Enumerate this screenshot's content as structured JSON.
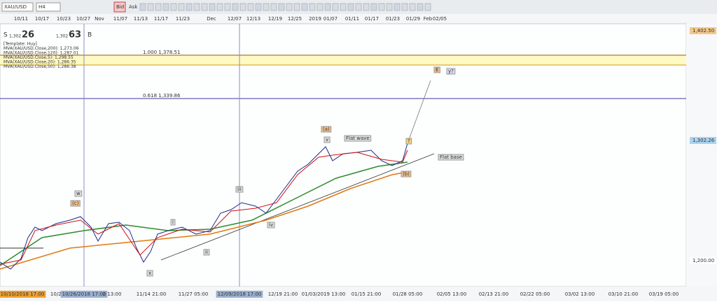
{
  "toolbar": {
    "symbol": "XAU/USD",
    "timeframe": "H4",
    "bid": "Bid",
    "ask": "Ask"
  },
  "top_dates": [
    "10/11",
    "10/17",
    "10/23",
    "10/27",
    "Nov",
    "11/07",
    "11/13",
    "11/17",
    "11/23",
    "Dec",
    "12/07",
    "12/13",
    "12/19",
    "12/25",
    "2019",
    "01/07",
    "01/11",
    "01/17",
    "01/23",
    "01/29",
    "Feb",
    "02/05"
  ],
  "quote": {
    "sell_label": "S",
    "sell_small": "1,302",
    "sell_big": "26",
    "buy_small": "1,302",
    "buy_big": "63",
    "buy_label": "B"
  },
  "legend": [
    "[Template: Huy]",
    "MVA(XAU/USD.Close,200): 1,273.06",
    "MVA(XAU/USD.Close,120): 1,287.01",
    "MVA(XAU/USD.Close,5): 1,298.55",
    "MVA(XAU/USD.Close,20): 1,286.35",
    "MVA(XAU/USD.Close,50): 1,286.38"
  ],
  "levels": [
    "1.000 1,378.51",
    "0.618 1,339.86"
  ],
  "price_axis": [
    "1,402.50",
    "1,302.26",
    "1,200.00"
  ],
  "wave_labels": [
    "(a)",
    "v",
    "Flat wave",
    "?",
    "Flat base",
    "(b)",
    "E",
    "y?",
    "w",
    "(c)",
    "iii",
    "i",
    "ii",
    "iv",
    "x"
  ],
  "bottom_times": [
    "10/10/2018 17:00",
    "10/23",
    "10/26/2018 17:00",
    "2 13:00",
    "11/14 21:00",
    "11/27 05:00",
    "12/09/2018 17:00",
    "12/19 21:00",
    "01/03/2019 13:00",
    "01/15 21:00",
    "01/28 05:00",
    "02/05 13:00",
    "02/13 21:00",
    "02/22 05:00",
    "03/02 13:00",
    "03/10 21:00",
    "03/19 05:00"
  ]
}
